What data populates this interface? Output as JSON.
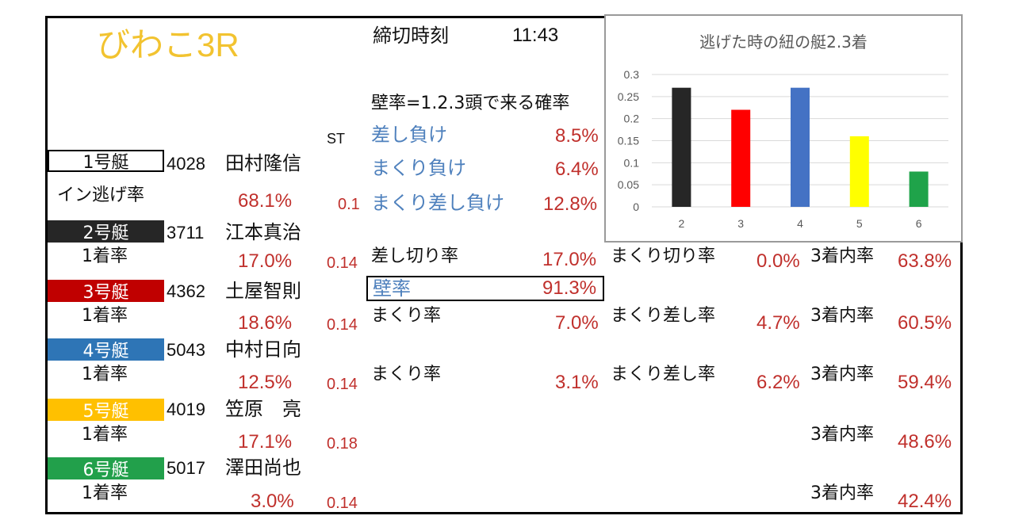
{
  "title": "びわこ3R",
  "deadline": {
    "label": "締切時刻",
    "time": "11:43"
  },
  "wall_section": {
    "heading": "壁率=1.2.3頭で来る確率",
    "st_label": "ST",
    "rows": [
      {
        "label": "差し負け",
        "value": "8.5%"
      },
      {
        "label": "まくり負け",
        "value": "6.4%"
      },
      {
        "label": "まくり差し負け",
        "value": "12.8%"
      }
    ],
    "wall_rate": {
      "label": "壁率",
      "value": "91.3%"
    }
  },
  "boats": [
    {
      "badge": "1号艇",
      "color": "#ffffff",
      "text_color": "#111111",
      "reg": "4028",
      "name": "田村隆信",
      "rate_label": "イン逃げ率",
      "rate": "68.1%",
      "st": "0.1"
    },
    {
      "badge": "2号艇",
      "color": "#262626",
      "text_color": "#ffffff",
      "reg": "3711",
      "name": "江本真治",
      "rate_label": "1着率",
      "rate": "17.0%",
      "st": "0.14"
    },
    {
      "badge": "3号艇",
      "color": "#c00000",
      "text_color": "#ffffff",
      "reg": "4362",
      "name": "土屋智則",
      "rate_label": "1着率",
      "rate": "18.6%",
      "st": "0.14"
    },
    {
      "badge": "4号艇",
      "color": "#2e75b6",
      "text_color": "#ffffff",
      "reg": "5043",
      "name": "中村日向",
      "rate_label": "1着率",
      "rate": "12.5%",
      "st": "0.14"
    },
    {
      "badge": "5号艇",
      "color": "#ffc000",
      "text_color": "#ffffff",
      "reg": "4019",
      "name": "笠原　亮",
      "rate_label": "1着率",
      "rate": "17.1%",
      "st": "0.18"
    },
    {
      "badge": "6号艇",
      "color": "#22a04b",
      "text_color": "#ffffff",
      "reg": "5017",
      "name": "澤田尚也",
      "rate_label": "1着率",
      "rate": "3.0%",
      "st": "0.14"
    }
  ],
  "boat_stats": {
    "row2": {
      "a_label": "差し切り率",
      "a_value": "17.0%",
      "b_label": "まくり切り率",
      "b_value": "0.0%",
      "c_label": "3着内率",
      "c_value": "63.8%"
    },
    "row3": {
      "a_label": "まくり率",
      "a_value": "7.0%",
      "b_label": "まくり差し率",
      "b_value": "4.7%",
      "c_label": "3着内率",
      "c_value": "60.5%"
    },
    "row4": {
      "a_label": "まくり率",
      "a_value": "3.1%",
      "b_label": "まくり差し率",
      "b_value": "6.2%",
      "c_label": "3着内率",
      "c_value": "59.4%"
    },
    "row5": {
      "c_label": "3着内率",
      "c_value": "48.6%"
    },
    "row6": {
      "c_label": "3着内率",
      "c_value": "42.4%"
    }
  },
  "chart_data": {
    "type": "bar",
    "title": "逃げた時の紐の艇2.3着",
    "categories": [
      "2",
      "3",
      "4",
      "5",
      "6"
    ],
    "values": [
      0.27,
      0.22,
      0.27,
      0.16,
      0.08
    ],
    "colors": [
      "#262626",
      "#ff0000",
      "#4472c4",
      "#ffff00",
      "#1fa34a"
    ],
    "yticks": [
      "0.3",
      "0.25",
      "0.2",
      "0.15",
      "0.1",
      "0.05",
      "0"
    ],
    "ylim": [
      0,
      0.3
    ],
    "grid": true,
    "legend": "none"
  }
}
